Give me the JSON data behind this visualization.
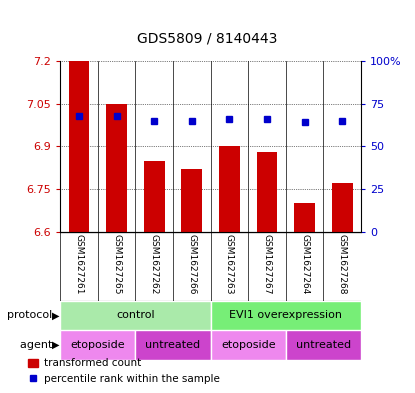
{
  "title": "GDS5809 / 8140443",
  "samples": [
    "GSM1627261",
    "GSM1627265",
    "GSM1627262",
    "GSM1627266",
    "GSM1627263",
    "GSM1627267",
    "GSM1627264",
    "GSM1627268"
  ],
  "transformed_counts": [
    7.2,
    7.05,
    6.85,
    6.82,
    6.9,
    6.88,
    6.7,
    6.77
  ],
  "percentile_ranks": [
    68,
    68,
    65,
    65,
    66,
    66,
    64,
    65
  ],
  "ymin": 6.6,
  "ymax": 7.2,
  "yticks": [
    6.6,
    6.75,
    6.9,
    7.05,
    7.2
  ],
  "ytick_labels": [
    "6.6",
    "6.75",
    "6.9",
    "7.05",
    "7.2"
  ],
  "right_yticks": [
    0,
    25,
    50,
    75,
    100
  ],
  "right_ytick_labels": [
    "0",
    "25",
    "50",
    "75",
    "100%"
  ],
  "bar_color": "#cc0000",
  "dot_color": "#0000cc",
  "sample_bg_color": "#cccccc",
  "protocol_groups": [
    {
      "label": "control",
      "start": 0,
      "end": 3,
      "color": "#99ee99"
    },
    {
      "label": "EVI1 overexpression",
      "start": 4,
      "end": 7,
      "color": "#66dd66"
    }
  ],
  "agent_groups": [
    {
      "label": "etoposide",
      "start": 0,
      "end": 1,
      "color": "#ee88ee"
    },
    {
      "label": "untreated",
      "start": 2,
      "end": 3,
      "color": "#cc55cc"
    },
    {
      "label": "etoposide",
      "start": 4,
      "end": 5,
      "color": "#ee88ee"
    },
    {
      "label": "untreated",
      "start": 6,
      "end": 7,
      "color": "#cc55cc"
    }
  ],
  "legend_bar_label": "transformed count",
  "legend_dot_label": "percentile rank within the sample",
  "protocol_label": "protocol",
  "agent_label": "agent",
  "background_color": "#ffffff"
}
